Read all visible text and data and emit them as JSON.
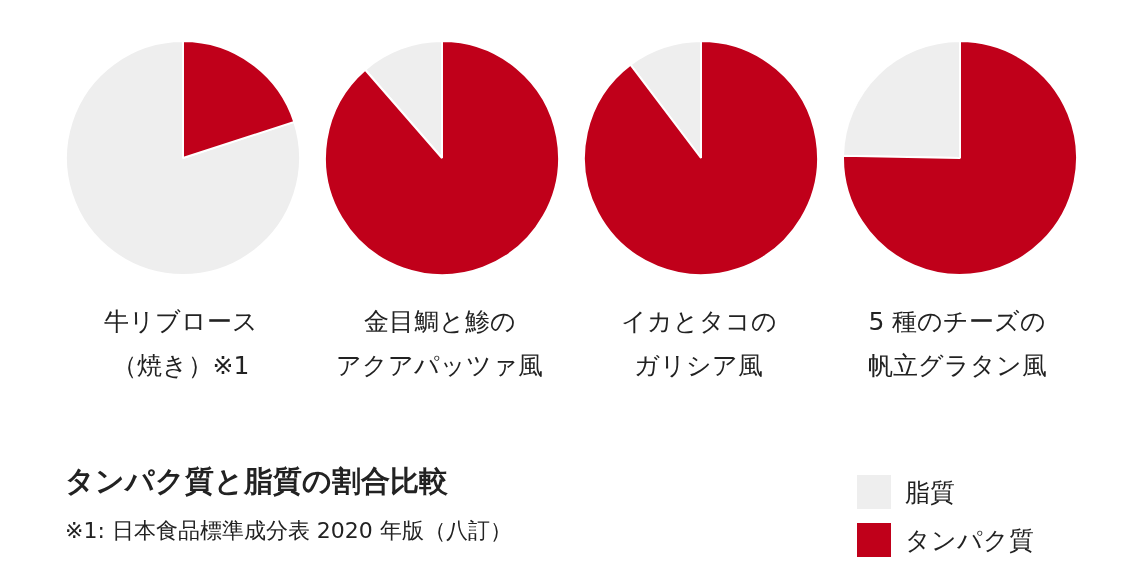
{
  "chart_data": [
    {
      "type": "pie",
      "title": "牛リブロース",
      "subtitle": "（焼き）※1",
      "categories": [
        "脂質",
        "タンパク質"
      ],
      "values": [
        80,
        20
      ],
      "colors": [
        "#eeeeee",
        "#c0001a"
      ],
      "legend": "bottom right"
    },
    {
      "type": "pie",
      "title": "金目鯛と鯵の",
      "subtitle": "アクアパッツァ風",
      "categories": [
        null,
        null
      ],
      "values": [
        11.4,
        88.6
      ],
      "colors": [
        "#eeeeee",
        "#c0001a"
      ]
    },
    {
      "type": "pie",
      "title": "イカとタコの",
      "subtitle": "ガリシア風",
      "categories": [
        null,
        null
      ],
      "values": [
        10.3,
        89.7
      ],
      "colors": [
        "#eeeeee",
        "#c0001a"
      ]
    },
    {
      "type": "pie",
      "title": "5 種のチーズの",
      "subtitle": "帆立グラタン風",
      "categories": [
        null,
        null
      ],
      "values": [
        24.7,
        75.3
      ],
      "colors": [
        "#eeeeee",
        "#c0001a"
      ]
    },
    {
      "type": "other",
      "title": "タンパク質と脂質の割合比較",
      "annotations": [
        "※1: 日本食品標準成分表 2020 年版（八訂）"
      ]
    }
  ]
}
